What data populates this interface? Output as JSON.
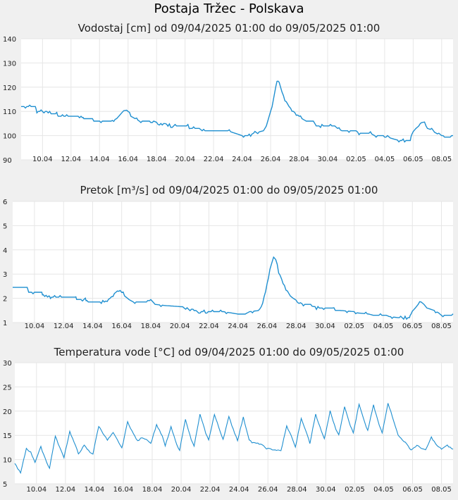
{
  "title": "Postaja Tržec - Polskava",
  "colors": {
    "line": "#1f8fd0",
    "grid": "#e6e6e6",
    "plot_bg": "#ffffff",
    "page_bg": "#f0f0f0"
  },
  "chart_data": [
    {
      "type": "line",
      "title": "Vodostaj [cm] od 09/04/2025 01:00 do 09/05/2025 01:00",
      "xlabel": "",
      "ylabel": "",
      "xlim": [
        8.5,
        38.8
      ],
      "ylim": [
        90,
        140
      ],
      "yticks": [
        90,
        100,
        110,
        120,
        130,
        140
      ],
      "xticks": [
        {
          "x": 10,
          "label": "10.04"
        },
        {
          "x": 12,
          "label": "12.04"
        },
        {
          "x": 14,
          "label": "14.04"
        },
        {
          "x": 16,
          "label": "16.04"
        },
        {
          "x": 18,
          "label": "18.04"
        },
        {
          "x": 20,
          "label": "20.04"
        },
        {
          "x": 22,
          "label": "22.04"
        },
        {
          "x": 24,
          "label": "24.04"
        },
        {
          "x": 26,
          "label": "26.04"
        },
        {
          "x": 28,
          "label": "28.04"
        },
        {
          "x": 30,
          "label": "30.04"
        },
        {
          "x": 32,
          "label": "02.05"
        },
        {
          "x": 34,
          "label": "04.05"
        },
        {
          "x": 36,
          "label": "06.05"
        },
        {
          "x": 38,
          "label": "08.05"
        }
      ],
      "grid": true,
      "series": [
        {
          "name": "Vodostaj",
          "points": [
            [
              8.5,
              112
            ],
            [
              9.5,
              112
            ],
            [
              9.6,
              110
            ],
            [
              10.5,
              110
            ],
            [
              10.6,
              109
            ],
            [
              11,
              109
            ],
            [
              11.1,
              108
            ],
            [
              12.8,
              108
            ],
            [
              12.9,
              107
            ],
            [
              13.5,
              107
            ],
            [
              13.6,
              106
            ],
            [
              14.8,
              106
            ],
            [
              15.2,
              107
            ],
            [
              15.5,
              109
            ],
            [
              15.8,
              111
            ],
            [
              16,
              110
            ],
            [
              16.2,
              108
            ],
            [
              16.5,
              107
            ],
            [
              16.8,
              106
            ],
            [
              17.8,
              106
            ],
            [
              18.2,
              105
            ],
            [
              18.6,
              105
            ],
            [
              19.0,
              104
            ],
            [
              20.2,
              104
            ],
            [
              20.4,
              103
            ],
            [
              21.0,
              103
            ],
            [
              21.2,
              102
            ],
            [
              23.0,
              102
            ],
            [
              23.5,
              101
            ],
            [
              24.0,
              100
            ],
            [
              24.5,
              100
            ],
            [
              24.8,
              101
            ],
            [
              25.5,
              102
            ],
            [
              25.7,
              104
            ],
            [
              26.0,
              110
            ],
            [
              26.2,
              115
            ],
            [
              26.45,
              123
            ],
            [
              26.6,
              122
            ],
            [
              26.8,
              118
            ],
            [
              27.0,
              115
            ],
            [
              27.3,
              112
            ],
            [
              27.6,
              110
            ],
            [
              27.8,
              109
            ],
            [
              28.2,
              107
            ],
            [
              28.5,
              106
            ],
            [
              29.0,
              106
            ],
            [
              29.2,
              104
            ],
            [
              30.5,
              104
            ],
            [
              30.7,
              103
            ],
            [
              31.0,
              102
            ],
            [
              32.0,
              102
            ],
            [
              32.2,
              101
            ],
            [
              33.0,
              101
            ],
            [
              33.3,
              100
            ],
            [
              34.2,
              100
            ],
            [
              34.4,
              99
            ],
            [
              35.0,
              98
            ],
            [
              35.8,
              98
            ],
            [
              35.9,
              101
            ],
            [
              36.2,
              103
            ],
            [
              36.4,
              104
            ],
            [
              36.6,
              106
            ],
            [
              36.8,
              105
            ],
            [
              37.0,
              103
            ],
            [
              37.5,
              102
            ],
            [
              37.8,
              101
            ],
            [
              38.0,
              100
            ],
            [
              38.8,
              100
            ]
          ]
        }
      ]
    },
    {
      "type": "line",
      "title": "Pretok [m³/s] od 09/04/2025 01:00 do 09/05/2025 01:00",
      "xlabel": "",
      "ylabel": "",
      "xlim": [
        8.5,
        38.8
      ],
      "ylim": [
        1,
        6
      ],
      "yticks": [
        1,
        2,
        3,
        4,
        5,
        6
      ],
      "xticks": [
        {
          "x": 10,
          "label": "10.04"
        },
        {
          "x": 12,
          "label": "12.04"
        },
        {
          "x": 14,
          "label": "14.04"
        },
        {
          "x": 16,
          "label": "16.04"
        },
        {
          "x": 18,
          "label": "18.04"
        },
        {
          "x": 20,
          "label": "20.04"
        },
        {
          "x": 22,
          "label": "22.04"
        },
        {
          "x": 24,
          "label": "24.04"
        },
        {
          "x": 26,
          "label": "26.04"
        },
        {
          "x": 28,
          "label": "28.04"
        },
        {
          "x": 30,
          "label": "30.04"
        },
        {
          "x": 32,
          "label": "02.05"
        },
        {
          "x": 34,
          "label": "04.05"
        },
        {
          "x": 36,
          "label": "06.05"
        },
        {
          "x": 38,
          "label": "08.05"
        }
      ],
      "grid": true,
      "series": [
        {
          "name": "Pretok",
          "points": [
            [
              8.5,
              2.45
            ],
            [
              9.5,
              2.45
            ],
            [
              9.6,
              2.25
            ],
            [
              10.5,
              2.25
            ],
            [
              10.6,
              2.15
            ],
            [
              11,
              2.1
            ],
            [
              11.1,
              2.05
            ],
            [
              12.8,
              2.05
            ],
            [
              12.9,
              1.95
            ],
            [
              13.5,
              1.95
            ],
            [
              13.6,
              1.85
            ],
            [
              14.8,
              1.85
            ],
            [
              15.2,
              2.0
            ],
            [
              15.5,
              2.2
            ],
            [
              15.8,
              2.35
            ],
            [
              16,
              2.3
            ],
            [
              16.2,
              2.1
            ],
            [
              16.5,
              1.95
            ],
            [
              16.8,
              1.85
            ],
            [
              17.8,
              1.85
            ],
            [
              18.0,
              1.95
            ],
            [
              18.3,
              1.75
            ],
            [
              19.0,
              1.7
            ],
            [
              20.2,
              1.65
            ],
            [
              20.4,
              1.55
            ],
            [
              21.0,
              1.55
            ],
            [
              21.2,
              1.45
            ],
            [
              23.0,
              1.45
            ],
            [
              23.5,
              1.4
            ],
            [
              24.0,
              1.35
            ],
            [
              24.5,
              1.35
            ],
            [
              24.8,
              1.45
            ],
            [
              25.5,
              1.5
            ],
            [
              25.7,
              1.8
            ],
            [
              26.0,
              2.6
            ],
            [
              26.2,
              3.2
            ],
            [
              26.45,
              3.7
            ],
            [
              26.6,
              3.6
            ],
            [
              26.8,
              3.1
            ],
            [
              27.0,
              2.8
            ],
            [
              27.3,
              2.4
            ],
            [
              27.6,
              2.1
            ],
            [
              27.8,
              2.0
            ],
            [
              28.2,
              1.85
            ],
            [
              28.5,
              1.75
            ],
            [
              29.0,
              1.75
            ],
            [
              29.2,
              1.6
            ],
            [
              30.5,
              1.6
            ],
            [
              30.7,
              1.5
            ],
            [
              31.0,
              1.5
            ],
            [
              32.0,
              1.45
            ],
            [
              32.2,
              1.4
            ],
            [
              33.0,
              1.35
            ],
            [
              33.3,
              1.3
            ],
            [
              34.2,
              1.3
            ],
            [
              34.4,
              1.25
            ],
            [
              35.0,
              1.2
            ],
            [
              35.8,
              1.2
            ],
            [
              35.9,
              1.4
            ],
            [
              36.2,
              1.6
            ],
            [
              36.4,
              1.75
            ],
            [
              36.6,
              1.85
            ],
            [
              36.8,
              1.75
            ],
            [
              37.0,
              1.6
            ],
            [
              37.5,
              1.5
            ],
            [
              37.8,
              1.4
            ],
            [
              38.0,
              1.3
            ],
            [
              38.8,
              1.3
            ]
          ]
        }
      ]
    },
    {
      "type": "line",
      "title": "Temperatura vode [°C] od 09/04/2025 01:00 do 09/05/2025 01:00",
      "xlabel": "",
      "ylabel": "",
      "xlim": [
        8.5,
        38.8
      ],
      "ylim": [
        5,
        30
      ],
      "yticks": [
        5,
        10,
        15,
        20,
        25,
        30
      ],
      "xticks": [
        {
          "x": 10,
          "label": "10.04"
        },
        {
          "x": 12,
          "label": "12.04"
        },
        {
          "x": 14,
          "label": "14.04"
        },
        {
          "x": 16,
          "label": "16.04"
        },
        {
          "x": 18,
          "label": "18.04"
        },
        {
          "x": 20,
          "label": "20.04"
        },
        {
          "x": 22,
          "label": "22.04"
        },
        {
          "x": 24,
          "label": "24.04"
        },
        {
          "x": 26,
          "label": "26.04"
        },
        {
          "x": 28,
          "label": "28.04"
        },
        {
          "x": 30,
          "label": "30.04"
        },
        {
          "x": 32,
          "label": "02.05"
        },
        {
          "x": 34,
          "label": "04.05"
        },
        {
          "x": 36,
          "label": "06.05"
        },
        {
          "x": 38,
          "label": "08.05"
        }
      ],
      "grid": true,
      "series": [
        {
          "name": "Temperatura vode",
          "points": [
            [
              8.5,
              9.2
            ],
            [
              8.9,
              7.2
            ],
            [
              9.3,
              12.3
            ],
            [
              9.6,
              11.5
            ],
            [
              9.9,
              9.5
            ],
            [
              10.3,
              12.6
            ],
            [
              10.7,
              9.5
            ],
            [
              10.9,
              8.2
            ],
            [
              11.3,
              14.8
            ],
            [
              11.7,
              11.8
            ],
            [
              11.9,
              10.5
            ],
            [
              12.3,
              15.8
            ],
            [
              12.7,
              12.8
            ],
            [
              12.9,
              11.2
            ],
            [
              13.3,
              12.9
            ],
            [
              13.7,
              11.5
            ],
            [
              13.9,
              11.2
            ],
            [
              14.3,
              16.9
            ],
            [
              14.7,
              15.0
            ],
            [
              14.9,
              14.0
            ],
            [
              15.3,
              15.5
            ],
            [
              15.7,
              13.5
            ],
            [
              15.9,
              12.3
            ],
            [
              16.3,
              17.8
            ],
            [
              16.7,
              15.3
            ],
            [
              17.0,
              13.8
            ],
            [
              17.3,
              14.6
            ],
            [
              17.7,
              14.0
            ],
            [
              17.9,
              13.3
            ],
            [
              18.3,
              17.2
            ],
            [
              18.7,
              14.8
            ],
            [
              18.9,
              12.8
            ],
            [
              19.3,
              16.7
            ],
            [
              19.7,
              13.0
            ],
            [
              19.9,
              12.0
            ],
            [
              20.3,
              18.4
            ],
            [
              20.7,
              14.0
            ],
            [
              20.9,
              12.8
            ],
            [
              21.3,
              19.3
            ],
            [
              21.7,
              15.5
            ],
            [
              21.9,
              14.0
            ],
            [
              22.3,
              19.3
            ],
            [
              22.7,
              15.8
            ],
            [
              22.9,
              14.2
            ],
            [
              23.3,
              18.8
            ],
            [
              23.7,
              15.5
            ],
            [
              23.9,
              14.0
            ],
            [
              24.3,
              18.7
            ],
            [
              24.7,
              14.2
            ],
            [
              24.9,
              13.5
            ],
            [
              25.5,
              13.2
            ],
            [
              25.9,
              12.3
            ],
            [
              26.5,
              12.0
            ],
            [
              26.9,
              11.8
            ],
            [
              27.3,
              16.9
            ],
            [
              27.7,
              14.3
            ],
            [
              27.9,
              12.5
            ],
            [
              28.3,
              18.4
            ],
            [
              28.7,
              15.3
            ],
            [
              28.9,
              13.3
            ],
            [
              29.3,
              19.4
            ],
            [
              29.7,
              15.8
            ],
            [
              29.9,
              14.3
            ],
            [
              30.3,
              20.0
            ],
            [
              30.7,
              16.3
            ],
            [
              30.9,
              15.0
            ],
            [
              31.3,
              21.0
            ],
            [
              31.7,
              17.0
            ],
            [
              31.9,
              15.5
            ],
            [
              32.3,
              21.4
            ],
            [
              32.7,
              17.5
            ],
            [
              32.9,
              16.0
            ],
            [
              33.3,
              21.2
            ],
            [
              33.7,
              17.0
            ],
            [
              33.9,
              15.5
            ],
            [
              34.3,
              21.7
            ],
            [
              34.7,
              18.0
            ],
            [
              35.0,
              15.0
            ],
            [
              35.5,
              13.5
            ],
            [
              35.9,
              12.0
            ],
            [
              36.3,
              12.9
            ],
            [
              36.9,
              11.9
            ],
            [
              37.3,
              14.6
            ],
            [
              37.7,
              12.8
            ],
            [
              38.0,
              12.2
            ],
            [
              38.4,
              12.9
            ],
            [
              38.8,
              12.1
            ]
          ]
        }
      ]
    }
  ]
}
